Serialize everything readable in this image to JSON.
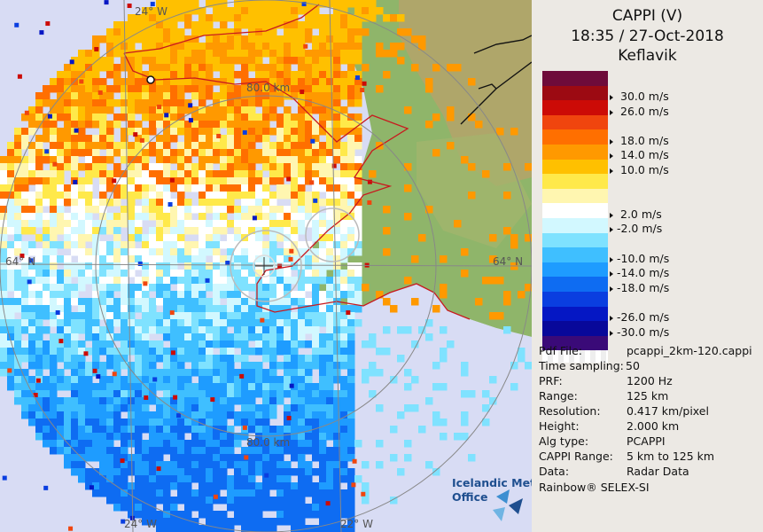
{
  "map": {
    "lat_label_left": "64° N",
    "lat_label_right": "64° N",
    "lon_label_top": "24° W",
    "lon_label_bottom_left": "24° W",
    "lon_label_bottom_right": "22° W",
    "ring_label_top": "80.0 km",
    "ring_label_bottom": "80.0 km",
    "logo_line1": "Icelandic Met",
    "logo_line2": "Office"
  },
  "panel": {
    "title": "CAPPI (V)",
    "datetime": "18:35 / 27-Oct-2018",
    "station": "Keflavik",
    "legend": [
      {
        "color": "#6e0b3a",
        "label": ""
      },
      {
        "color": "#9c0a12",
        "label": "30.0 m/s"
      },
      {
        "color": "#cc0b06",
        "label": "26.0 m/s"
      },
      {
        "color": "#f0450e",
        "label": ""
      },
      {
        "color": "#ff6f00",
        "label": "18.0 m/s"
      },
      {
        "color": "#ff9900",
        "label": "14.0 m/s"
      },
      {
        "color": "#ffc000",
        "label": "10.0 m/s"
      },
      {
        "color": "#ffe94a",
        "label": ""
      },
      {
        "color": "#fff6b0",
        "label": ""
      },
      {
        "color": "#ffffff",
        "label": "2.0 m/s"
      },
      {
        "color": "#d2f8ff",
        "label": "-2.0 m/s"
      },
      {
        "color": "#7fe2ff",
        "label": ""
      },
      {
        "color": "#3fbfff",
        "label": "-10.0 m/s"
      },
      {
        "color": "#1e9cff",
        "label": "-14.0 m/s"
      },
      {
        "color": "#0e6cf2",
        "label": "-18.0 m/s"
      },
      {
        "color": "#0a3ee0",
        "label": ""
      },
      {
        "color": "#0517c4",
        "label": "-26.0 m/s"
      },
      {
        "color": "#08089a",
        "label": "-30.0 m/s"
      },
      {
        "color": "#3a0a78",
        "label": ""
      }
    ],
    "info": [
      {
        "key": "Pdf File:",
        "value": "pcappi_2km-120.cappi"
      },
      {
        "key": "Time sampling:",
        "value": "50"
      },
      {
        "key": "PRF:",
        "value": "1200 Hz"
      },
      {
        "key": "Range:",
        "value": "125 km"
      },
      {
        "key": "Resolution:",
        "value": "0.417 km/pixel"
      },
      {
        "key": "Height:",
        "value": "2.000 km"
      },
      {
        "key": "Alg type:",
        "value": "PCAPPI"
      },
      {
        "key": "CAPPI Range:",
        "value": "5 km to 125 km"
      },
      {
        "key": "Data:",
        "value": "Radar Data"
      }
    ],
    "footer": "Rainbow® SELEX-SI"
  }
}
